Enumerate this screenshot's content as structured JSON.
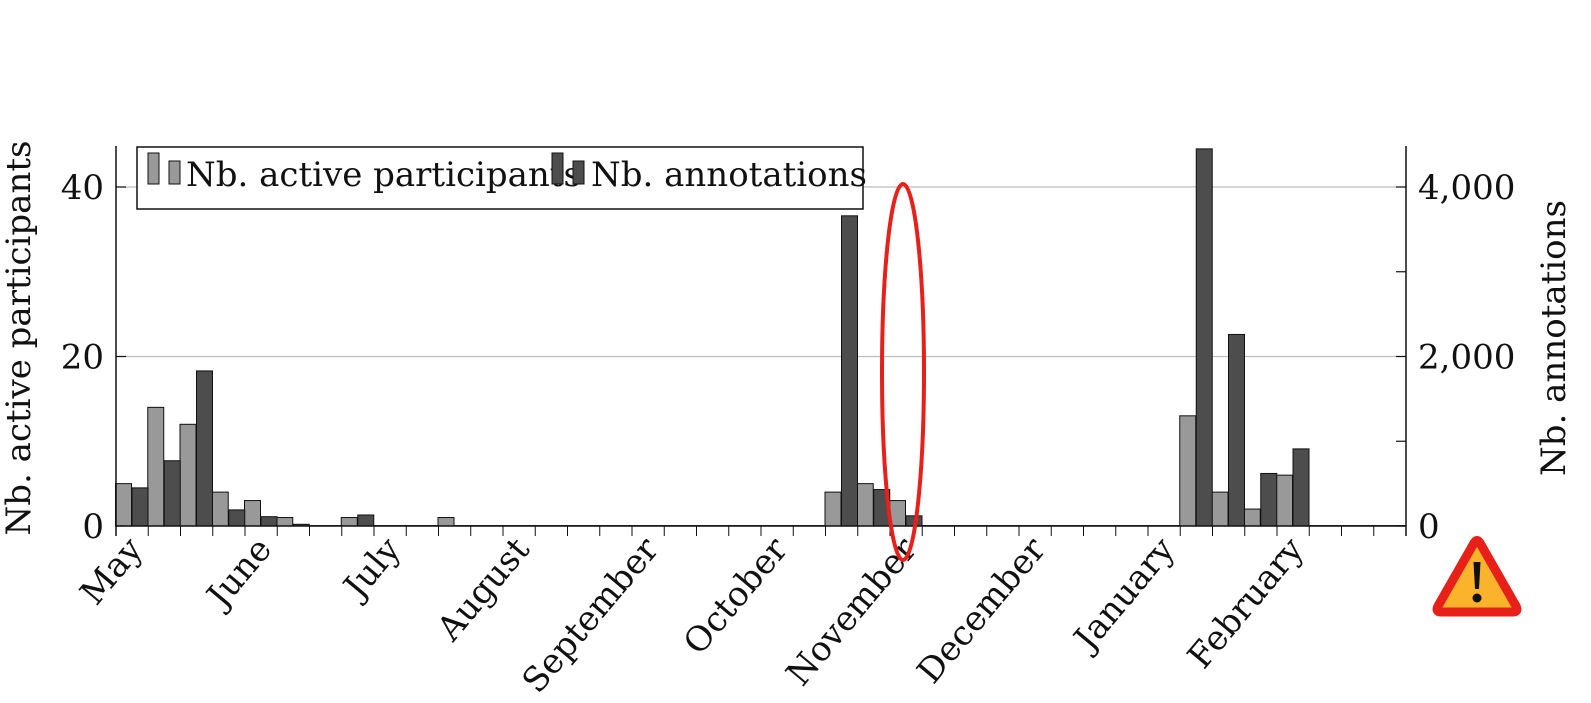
{
  "chart_data": {
    "type": "bar",
    "categories": [
      "May-1",
      "May-2",
      "May-3",
      "May-4",
      "Jun-1",
      "Jun-2",
      "Jun-3",
      "Jun-4",
      "Jul-1",
      "Jul-2",
      "Jul-3",
      "Jul-4",
      "Aug-1",
      "Aug-2",
      "Aug-3",
      "Aug-4",
      "Sep-1",
      "Sep-2",
      "Sep-3",
      "Sep-4",
      "Oct-1",
      "Oct-2",
      "Oct-3",
      "Oct-4",
      "Nov-1",
      "Nov-2",
      "Nov-3",
      "Nov-4",
      "Dec-1",
      "Dec-2",
      "Dec-3",
      "Dec-4",
      "Jan-1",
      "Jan-2",
      "Jan-3",
      "Jan-4",
      "Feb-1",
      "Feb-2",
      "Feb-3",
      "Feb-4"
    ],
    "x_tick_labels": [
      "May",
      "June",
      "July",
      "August",
      "September",
      "October",
      "November",
      "December",
      "January",
      "February"
    ],
    "series": [
      {
        "name": "Nb. active participants",
        "axis": "left",
        "color": "#999999",
        "values": [
          5,
          14,
          12,
          4,
          3,
          1,
          0,
          1,
          0,
          0,
          1,
          0,
          0,
          0,
          0,
          0,
          0,
          0,
          0,
          0,
          0,
          0,
          4,
          5,
          3,
          0,
          0,
          0,
          0,
          0,
          0,
          0,
          0,
          13,
          4,
          2,
          6,
          0,
          0,
          0
        ]
      },
      {
        "name": "Nb. annotations",
        "axis": "right",
        "color": "#4d4d4d",
        "values": [
          450,
          770,
          1830,
          190,
          110,
          20,
          0,
          130,
          0,
          0,
          0,
          0,
          0,
          0,
          0,
          0,
          0,
          0,
          0,
          0,
          0,
          0,
          3660,
          430,
          120,
          0,
          0,
          0,
          0,
          0,
          0,
          0,
          0,
          4450,
          2260,
          620,
          910,
          0,
          0,
          0
        ]
      }
    ],
    "ylabel": "Nb. active participants",
    "y2label": "Nb. annotations",
    "ylim": [
      0,
      45
    ],
    "y2lim": [
      0,
      4500
    ],
    "y_ticks": [
      "0",
      "20",
      "40"
    ],
    "y2_ticks": [
      "0",
      "2,000",
      "4,000"
    ],
    "grid": true,
    "legend_position": "top-left",
    "highlight": {
      "category": "Oct-3",
      "series": "Nb. annotations",
      "color": "#e8201a"
    },
    "warning_icon": {
      "name": "warning-triangle-icon",
      "color": "#fbb32b",
      "border": "#e8201a"
    }
  }
}
